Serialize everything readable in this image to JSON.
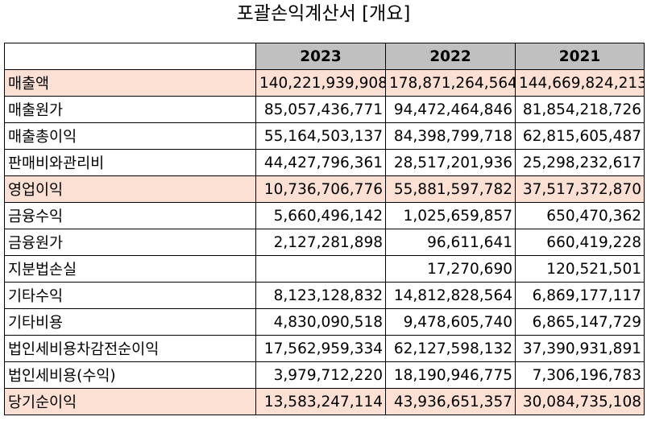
{
  "title": "포괄손익계산서 [개요]",
  "header": {
    "blank": "",
    "years": [
      "2023",
      "2022",
      "2021"
    ]
  },
  "accent": {
    "highlight_row": "#fbe0d3",
    "header_bg": "#c0c0c0"
  },
  "rows": [
    {
      "label": "매출액",
      "values": [
        "140,221,939,908",
        "178,871,264,564",
        "144,669,824,213"
      ],
      "highlight": true
    },
    {
      "label": "매출원가",
      "values": [
        "85,057,436,771",
        "94,472,464,846",
        "81,854,218,726"
      ],
      "highlight": false
    },
    {
      "label": "매출총이익",
      "values": [
        "55,164,503,137",
        "84,398,799,718",
        "62,815,605,487"
      ],
      "highlight": false
    },
    {
      "label": "판매비와관리비",
      "values": [
        "44,427,796,361",
        "28,517,201,936",
        "25,298,232,617"
      ],
      "highlight": false
    },
    {
      "label": "영업이익",
      "values": [
        "10,736,706,776",
        "55,881,597,782",
        "37,517,372,870"
      ],
      "highlight": true
    },
    {
      "label": "금융수익",
      "values": [
        "5,660,496,142",
        "1,025,659,857",
        "650,470,362"
      ],
      "highlight": false
    },
    {
      "label": "금융원가",
      "values": [
        "2,127,281,898",
        "96,611,641",
        "660,419,228"
      ],
      "highlight": false
    },
    {
      "label": "지분법손실",
      "values": [
        "",
        "17,270,690",
        "120,521,501"
      ],
      "highlight": false
    },
    {
      "label": "기타수익",
      "values": [
        "8,123,128,832",
        "14,812,828,564",
        "6,869,177,117"
      ],
      "highlight": false
    },
    {
      "label": "기타비용",
      "values": [
        "4,830,090,518",
        "9,478,605,740",
        "6,865,147,729"
      ],
      "highlight": false
    },
    {
      "label": "법인세비용차감전순이익",
      "values": [
        "17,562,959,334",
        "62,127,598,132",
        "37,390,931,891"
      ],
      "highlight": false
    },
    {
      "label": "법인세비용(수익)",
      "values": [
        "3,979,712,220",
        "18,190,946,775",
        "7,306,196,783"
      ],
      "highlight": false
    },
    {
      "label": "당기순이익",
      "values": [
        "13,583,247,114",
        "43,936,651,357",
        "30,084,735,108"
      ],
      "highlight": true
    }
  ]
}
